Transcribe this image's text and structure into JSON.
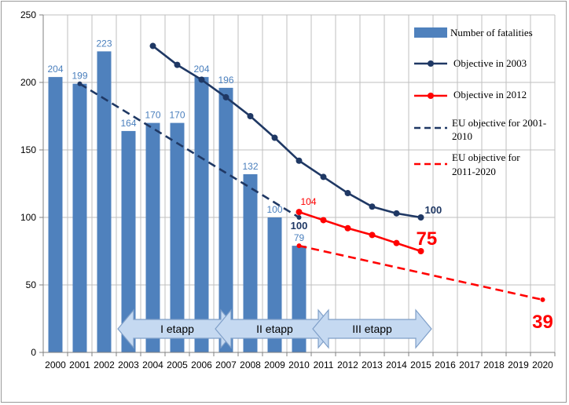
{
  "chart_data": {
    "type": "bar",
    "title": "",
    "xlabel": "",
    "ylabel": "",
    "ylim": [
      0,
      250
    ],
    "yticks": [
      "0",
      "50",
      "100",
      "150",
      "200",
      "250"
    ],
    "categories": [
      "2000",
      "2001",
      "2002",
      "2003",
      "2004",
      "2005",
      "2006",
      "2007",
      "2008",
      "2009",
      "2010",
      "2011",
      "2012",
      "2013",
      "2014",
      "2015",
      "2016",
      "2017",
      "2018",
      "2019",
      "2020"
    ],
    "grid": "horizontal and vertical",
    "legend_position": "top-right",
    "bars": {
      "name": "Number of fatalities",
      "color": "#4f81bd",
      "values": [
        204,
        199,
        223,
        164,
        170,
        170,
        204,
        196,
        132,
        100,
        79
      ],
      "labels": [
        "204",
        "199",
        "223",
        "164",
        "170",
        "170",
        "204",
        "196",
        "132",
        "100",
        "79"
      ]
    },
    "series": [
      {
        "name": "Objective in 2003",
        "style": "solid",
        "color": "#1f3864",
        "x": [
          "2004",
          "2005",
          "2006",
          "2007",
          "2008",
          "2009",
          "2010",
          "2011",
          "2012",
          "2013",
          "2014",
          "2015"
        ],
        "values": [
          227,
          213,
          202,
          189,
          175,
          159,
          142,
          130,
          118,
          108,
          103,
          100
        ],
        "end_label": "100"
      },
      {
        "name": "Objective in 2012",
        "style": "solid",
        "color": "#ff0000",
        "x": [
          "2010",
          "2011",
          "2012",
          "2013",
          "2014",
          "2015"
        ],
        "values": [
          104,
          98,
          92,
          87,
          81,
          75
        ],
        "start_label": "104",
        "end_label": "75"
      },
      {
        "name": "EU objective for 2001-2010",
        "legend_lines": [
          "EU objective for 2001-",
          "2010"
        ],
        "style": "dashed",
        "color": "#1f3864",
        "x": [
          "2001",
          "2010"
        ],
        "values": [
          199,
          100
        ],
        "end_label": "100"
      },
      {
        "name": "EU objective for 2011-2020",
        "legend_lines": [
          "EU objective for",
          "2011-2020"
        ],
        "style": "dashed",
        "color": "#ff0000",
        "x": [
          "2010",
          "2020"
        ],
        "values": [
          79,
          39
        ],
        "end_label": "39"
      }
    ],
    "stages": [
      {
        "label": "I etapp",
        "from": "2003",
        "to": "2007"
      },
      {
        "label": "II etapp",
        "from": "2007",
        "to": "2011"
      },
      {
        "label": "III etapp",
        "from": "2011",
        "to": "2015"
      }
    ]
  },
  "colors": {
    "bar": "#4f81bd",
    "bar_label": "#4a7fbd",
    "navy": "#1f3864",
    "red": "#ff0000",
    "stage_fill": "#c5d9f1",
    "stage_stroke": "#7f9fc8",
    "grid": "#bfbfbf"
  }
}
